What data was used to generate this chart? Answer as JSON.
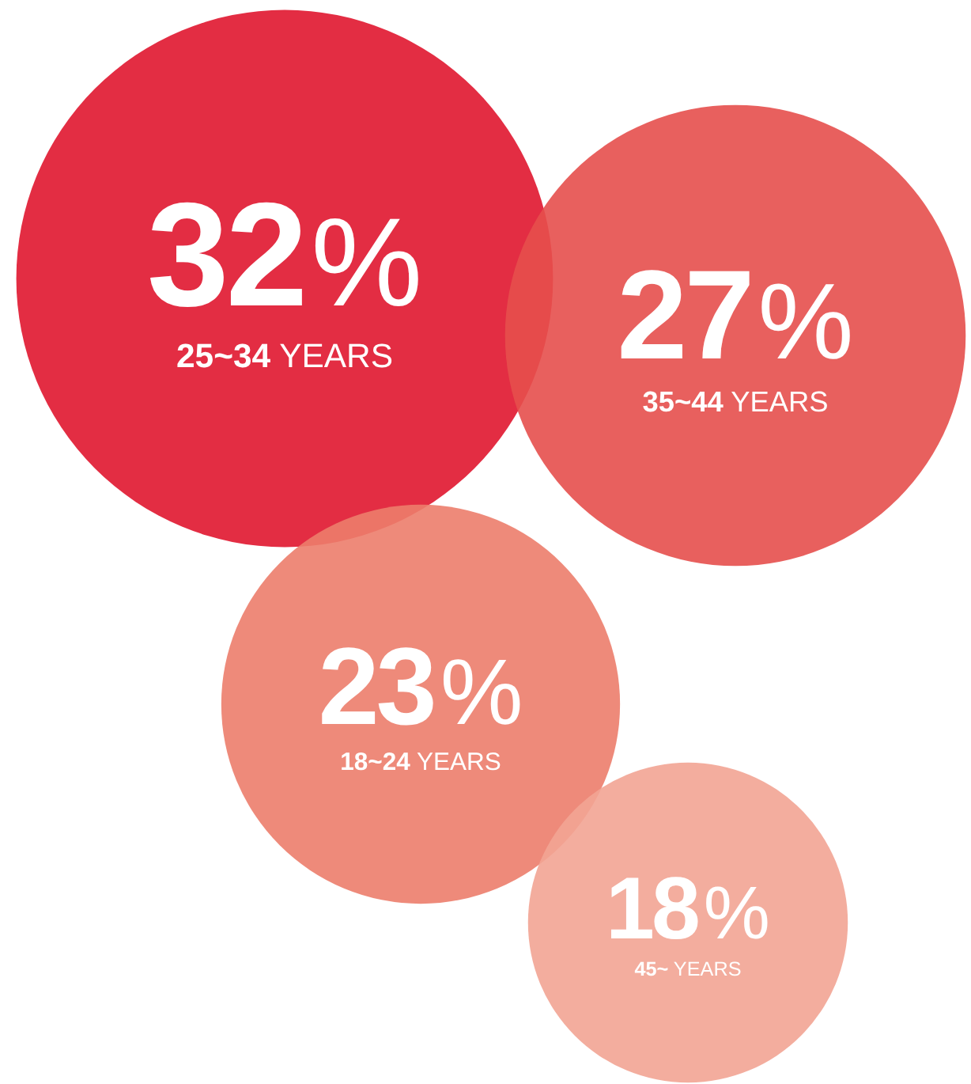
{
  "chart_data": {
    "type": "other",
    "categories": [
      "25~34 YEARS",
      "35~44 YEARS",
      "18~24 YEARS",
      "45~ YEARS"
    ],
    "values": [
      32,
      27,
      23,
      18
    ],
    "colors": [
      "#e0162f",
      "#e54f4d",
      "#ec7d6b",
      "#f2a493"
    ],
    "value_labels": [
      "32%",
      "27%",
      "23%",
      "18%"
    ]
  }
}
